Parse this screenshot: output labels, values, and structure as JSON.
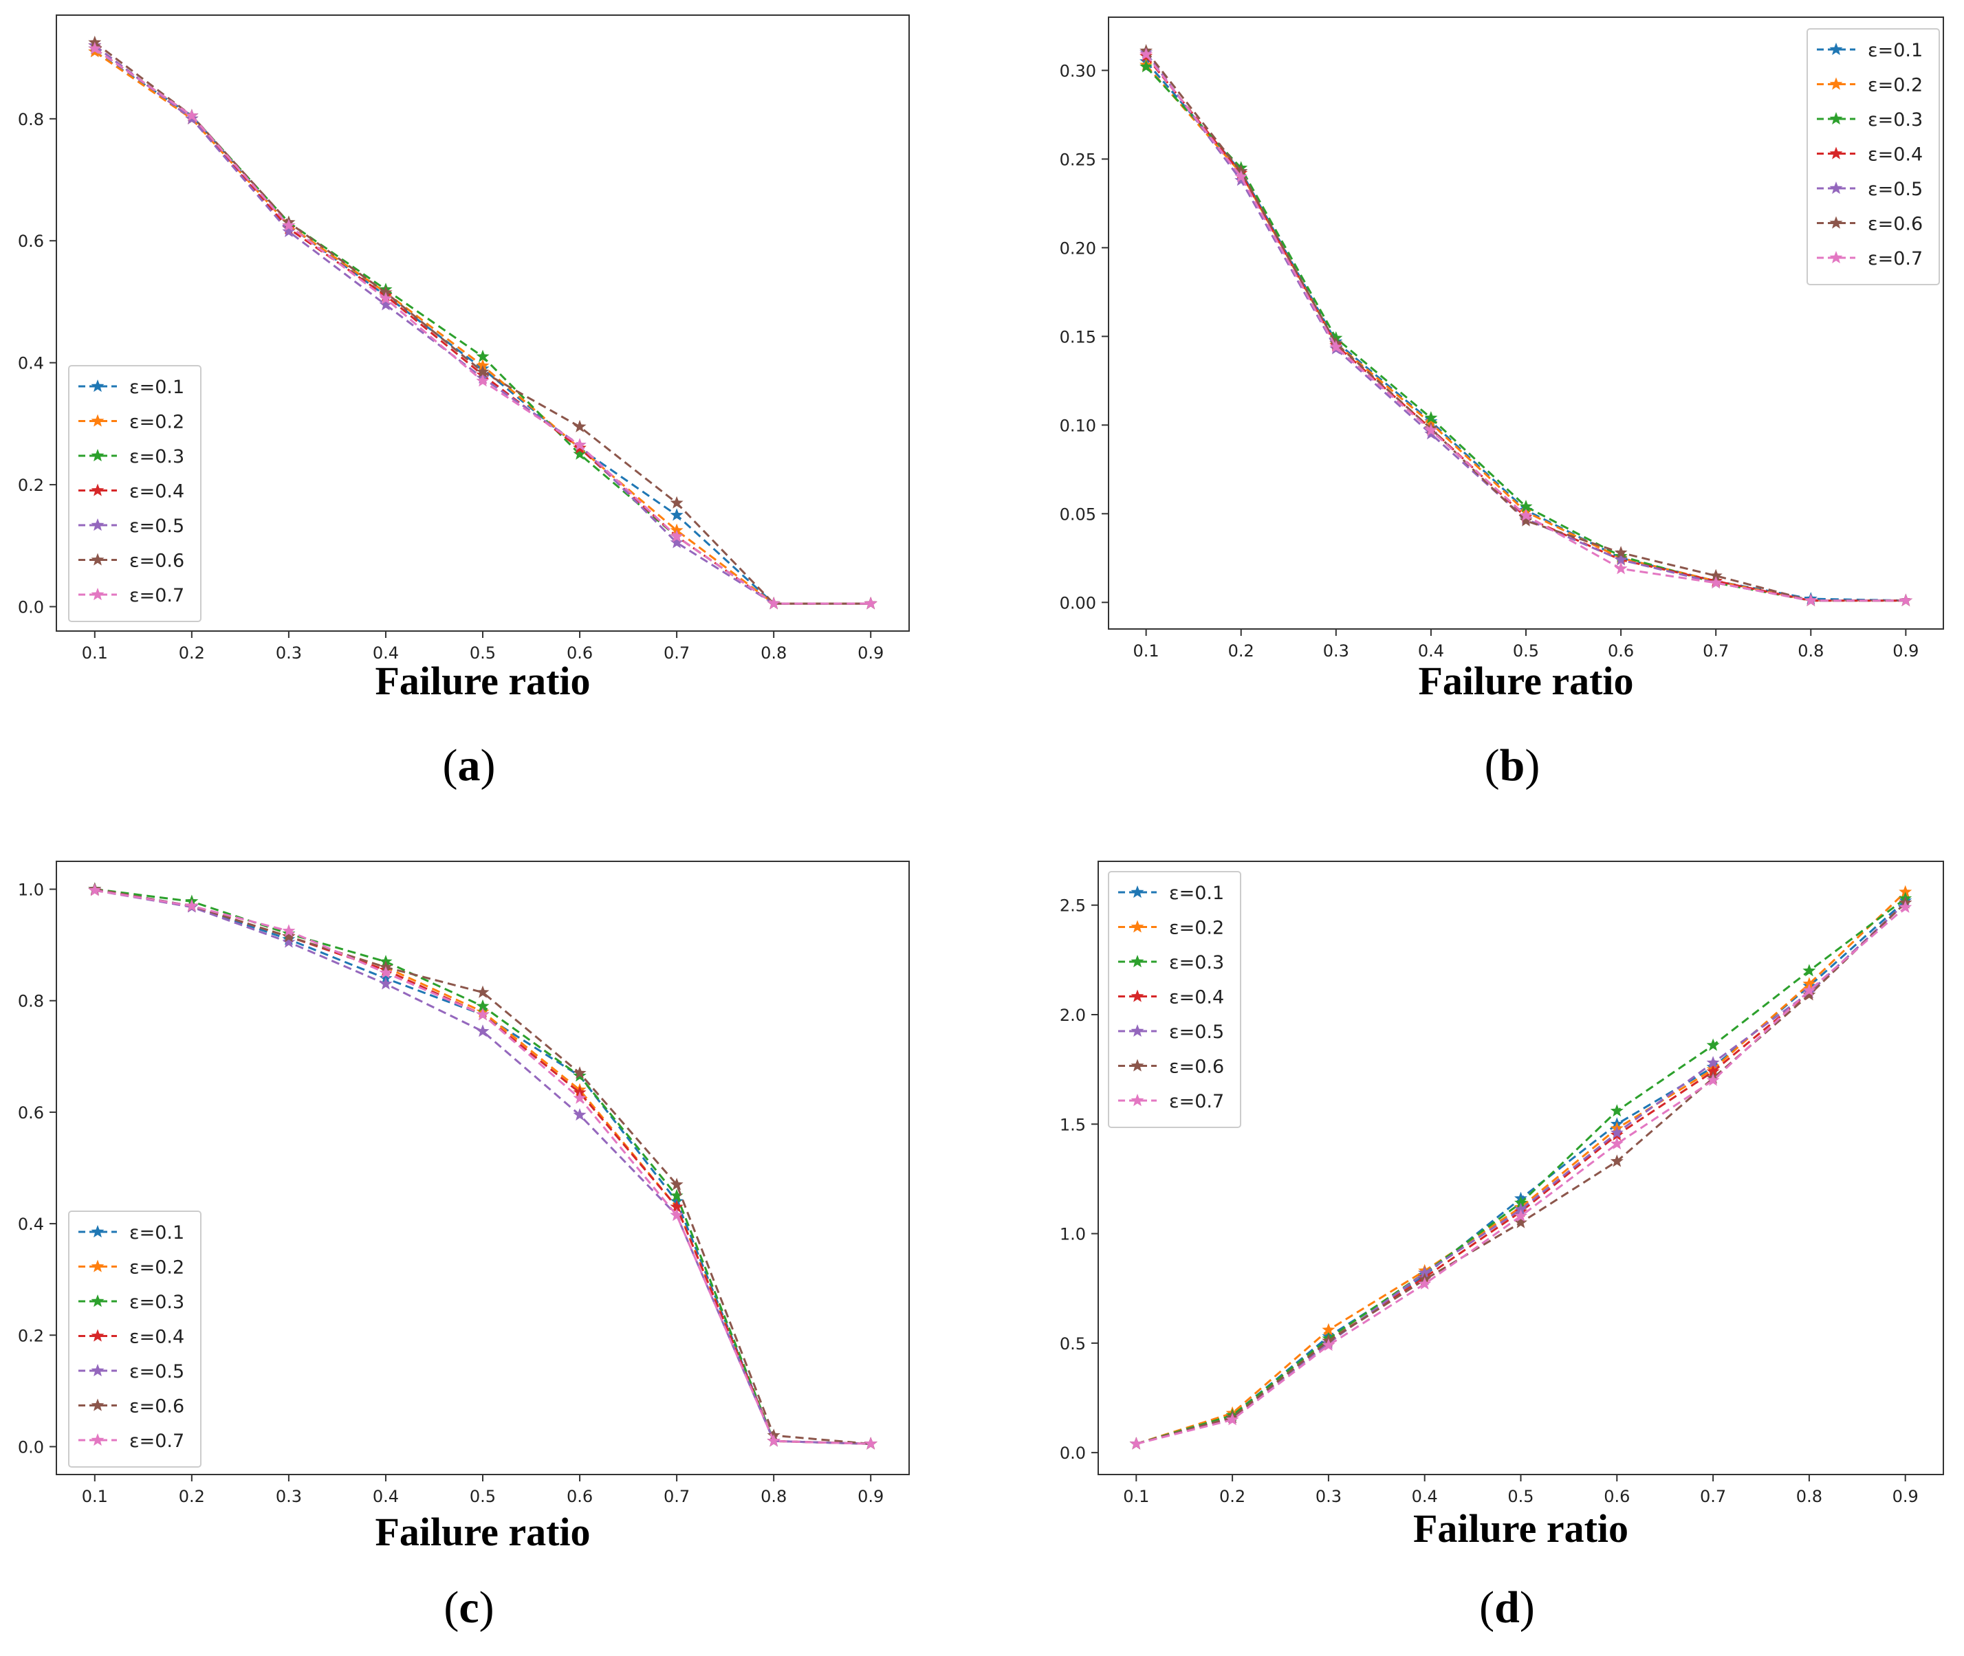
{
  "chart_data": [
    {
      "panel": "a",
      "type": "line",
      "caption": "a",
      "xlabel": "Failure ratio",
      "ylabel": "",
      "x": [
        0.1,
        0.2,
        0.3,
        0.4,
        0.5,
        0.6,
        0.7,
        0.8,
        0.9
      ],
      "xticks": [
        "0.1",
        "0.2",
        "0.3",
        "0.4",
        "0.5",
        "0.6",
        "0.7",
        "0.8",
        "0.9"
      ],
      "ylim": [
        -0.04,
        0.97
      ],
      "yticks": [
        0.0,
        0.2,
        0.4,
        0.6,
        0.8
      ],
      "ytick_labels": [
        "0.0",
        "0.2",
        "0.4",
        "0.6",
        "0.8"
      ],
      "legend_loc": "bottom-left",
      "series": [
        {
          "name": "ε=0.1",
          "values": [
            0.91,
            0.805,
            0.625,
            0.51,
            0.39,
            0.26,
            0.15,
            0.005,
            0.005
          ]
        },
        {
          "name": "ε=0.2",
          "values": [
            0.91,
            0.8,
            0.625,
            0.515,
            0.395,
            0.26,
            0.125,
            0.005,
            0.005
          ]
        },
        {
          "name": "ε=0.3",
          "values": [
            0.915,
            0.805,
            0.63,
            0.52,
            0.41,
            0.25,
            0.115,
            0.005,
            0.005
          ]
        },
        {
          "name": "ε=0.4",
          "values": [
            0.92,
            0.8,
            0.62,
            0.51,
            0.38,
            0.26,
            0.115,
            0.005,
            0.005
          ]
        },
        {
          "name": "ε=0.5",
          "values": [
            0.92,
            0.8,
            0.615,
            0.495,
            0.375,
            0.265,
            0.105,
            0.005,
            0.005
          ]
        },
        {
          "name": "ε=0.6",
          "values": [
            0.925,
            0.805,
            0.63,
            0.515,
            0.385,
            0.295,
            0.17,
            0.005,
            0.005
          ]
        },
        {
          "name": "ε=0.7",
          "values": [
            0.915,
            0.805,
            0.625,
            0.505,
            0.37,
            0.265,
            0.115,
            0.005,
            0.005
          ]
        }
      ]
    },
    {
      "panel": "b",
      "type": "line",
      "caption": "b",
      "xlabel": "Failure ratio",
      "ylabel": "",
      "x": [
        0.1,
        0.2,
        0.3,
        0.4,
        0.5,
        0.6,
        0.7,
        0.8,
        0.9
      ],
      "xticks": [
        "0.1",
        "0.2",
        "0.3",
        "0.4",
        "0.5",
        "0.6",
        "0.7",
        "0.8",
        "0.9"
      ],
      "ylim": [
        -0.015,
        0.33
      ],
      "yticks": [
        0.0,
        0.05,
        0.1,
        0.15,
        0.2,
        0.25,
        0.3
      ],
      "ytick_labels": [
        "0.00",
        "0.05",
        "0.10",
        "0.15",
        "0.20",
        "0.25",
        "0.30"
      ],
      "legend_loc": "top-right",
      "series": [
        {
          "name": "ε=0.1",
          "values": [
            0.305,
            0.243,
            0.147,
            0.102,
            0.052,
            0.025,
            0.012,
            0.002,
            0.001
          ]
        },
        {
          "name": "ε=0.2",
          "values": [
            0.303,
            0.242,
            0.146,
            0.101,
            0.051,
            0.025,
            0.012,
            0.001,
            0.001
          ]
        },
        {
          "name": "ε=0.3",
          "values": [
            0.302,
            0.245,
            0.149,
            0.104,
            0.054,
            0.026,
            0.011,
            0.001,
            0.001
          ]
        },
        {
          "name": "ε=0.4",
          "values": [
            0.308,
            0.242,
            0.145,
            0.098,
            0.048,
            0.024,
            0.012,
            0.001,
            0.001
          ]
        },
        {
          "name": "ε=0.5",
          "values": [
            0.31,
            0.238,
            0.143,
            0.095,
            0.047,
            0.024,
            0.011,
            0.001,
            0.001
          ]
        },
        {
          "name": "ε=0.6",
          "values": [
            0.311,
            0.243,
            0.146,
            0.098,
            0.046,
            0.028,
            0.015,
            0.001,
            0.001
          ]
        },
        {
          "name": "ε=0.7",
          "values": [
            0.309,
            0.24,
            0.144,
            0.097,
            0.049,
            0.019,
            0.011,
            0.001,
            0.001
          ]
        }
      ]
    },
    {
      "panel": "c",
      "type": "line",
      "caption": "c",
      "xlabel": "Failure ratio",
      "ylabel": "",
      "x": [
        0.1,
        0.2,
        0.3,
        0.4,
        0.5,
        0.6,
        0.7,
        0.8,
        0.9
      ],
      "xticks": [
        "0.1",
        "0.2",
        "0.3",
        "0.4",
        "0.5",
        "0.6",
        "0.7",
        "0.8",
        "0.9"
      ],
      "ylim": [
        -0.05,
        1.05
      ],
      "yticks": [
        0.0,
        0.2,
        0.4,
        0.6,
        0.8,
        1.0
      ],
      "ytick_labels": [
        "0.0",
        "0.2",
        "0.4",
        "0.6",
        "0.8",
        "1.0"
      ],
      "legend_loc": "bottom-left",
      "series": [
        {
          "name": "ε=0.1",
          "values": [
            1.0,
            0.97,
            0.91,
            0.84,
            0.775,
            0.665,
            0.44,
            0.01,
            0.005
          ]
        },
        {
          "name": "ε=0.2",
          "values": [
            0.998,
            0.97,
            0.915,
            0.86,
            0.78,
            0.64,
            0.43,
            0.01,
            0.005
          ]
        },
        {
          "name": "ε=0.3",
          "values": [
            1.0,
            0.978,
            0.92,
            0.87,
            0.79,
            0.665,
            0.45,
            0.01,
            0.005
          ]
        },
        {
          "name": "ε=0.4",
          "values": [
            0.998,
            0.97,
            0.915,
            0.855,
            0.775,
            0.635,
            0.43,
            0.01,
            0.005
          ]
        },
        {
          "name": "ε=0.5",
          "values": [
            0.998,
            0.968,
            0.905,
            0.83,
            0.745,
            0.595,
            0.415,
            0.01,
            0.005
          ]
        },
        {
          "name": "ε=0.6",
          "values": [
            1.0,
            0.97,
            0.915,
            0.86,
            0.815,
            0.67,
            0.47,
            0.02,
            0.005
          ]
        },
        {
          "name": "ε=0.7",
          "values": [
            0.998,
            0.97,
            0.925,
            0.85,
            0.775,
            0.625,
            0.415,
            0.01,
            0.005
          ]
        }
      ]
    },
    {
      "panel": "d",
      "type": "line",
      "caption": "d",
      "xlabel": "Failure ratio",
      "ylabel": "",
      "x": [
        0.1,
        0.2,
        0.3,
        0.4,
        0.5,
        0.6,
        0.7,
        0.8,
        0.9
      ],
      "xticks": [
        "0.1",
        "0.2",
        "0.3",
        "0.4",
        "0.5",
        "0.6",
        "0.7",
        "0.8",
        "0.9"
      ],
      "ylim": [
        -0.1,
        2.7
      ],
      "yticks": [
        0.0,
        0.5,
        1.0,
        1.5,
        2.0,
        2.5
      ],
      "ytick_labels": [
        "0.0",
        "0.5",
        "1.0",
        "1.5",
        "2.0",
        "2.5"
      ],
      "legend_loc": "top-left",
      "series": [
        {
          "name": "ε=0.1",
          "values": [
            0.04,
            0.17,
            0.53,
            0.81,
            1.16,
            1.5,
            1.76,
            2.13,
            2.52
          ]
        },
        {
          "name": "ε=0.2",
          "values": [
            0.04,
            0.18,
            0.56,
            0.83,
            1.12,
            1.48,
            1.75,
            2.14,
            2.56
          ]
        },
        {
          "name": "ε=0.3",
          "values": [
            0.04,
            0.17,
            0.52,
            0.82,
            1.14,
            1.56,
            1.86,
            2.2,
            2.53
          ]
        },
        {
          "name": "ε=0.4",
          "values": [
            0.04,
            0.16,
            0.51,
            0.8,
            1.1,
            1.45,
            1.74,
            2.1,
            2.51
          ]
        },
        {
          "name": "ε=0.5",
          "values": [
            0.04,
            0.16,
            0.5,
            0.82,
            1.11,
            1.46,
            1.78,
            2.1,
            2.51
          ]
        },
        {
          "name": "ε=0.6",
          "values": [
            0.04,
            0.16,
            0.51,
            0.79,
            1.05,
            1.33,
            1.71,
            2.09,
            2.51
          ]
        },
        {
          "name": "ε=0.7",
          "values": [
            0.04,
            0.15,
            0.49,
            0.77,
            1.08,
            1.41,
            1.7,
            2.11,
            2.49
          ]
        }
      ]
    }
  ],
  "series_colors": [
    "#1f77b4",
    "#ff7f0e",
    "#2ca02c",
    "#d62728",
    "#9467bd",
    "#8c564b",
    "#e377c2"
  ]
}
